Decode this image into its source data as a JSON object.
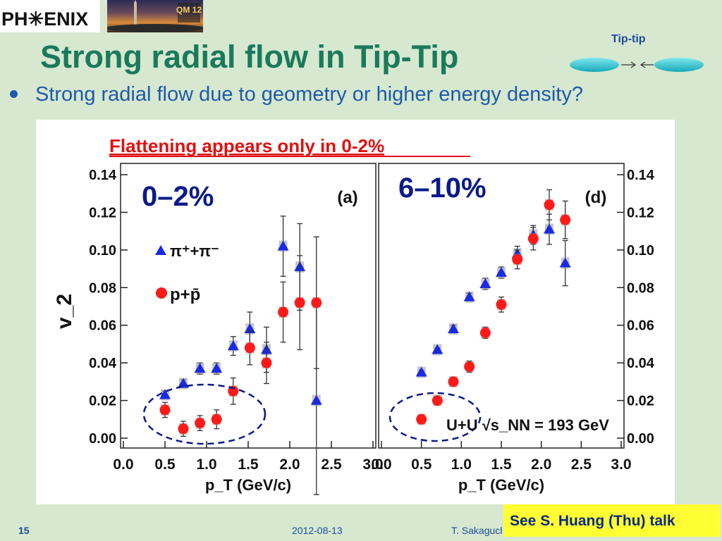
{
  "header": {
    "logo_text": "PH✳ENIX",
    "photo_badge": "QM 12",
    "title": "Strong radial flow in Tip-Tip",
    "bullet": "Strong radial flow due to geometry or higher energy density?",
    "tiptip_label": "Tip-tip"
  },
  "figure_notes": {
    "flattening": "Flattening appears only in 0-2%",
    "see_talk": "See S. Huang (Thu) talk"
  },
  "footer": {
    "page": "15",
    "date": "2012-08-13",
    "author": "T. Sakaguchi"
  },
  "colors": {
    "title": "#1a7a5a",
    "bullet": "#1e5aa8",
    "pion": "#1a2ae0",
    "proton": "#ff1a1a",
    "highlight": "#ffff33",
    "flattening": "#e01010"
  },
  "chart_data": [
    {
      "type": "scatter",
      "panel_label": "(a)",
      "centrality": "0–2%",
      "xlabel": "p_T (GeV/c)",
      "ylabel": "v_2",
      "xlim": [
        0.0,
        3.0
      ],
      "ylim": [
        0.0,
        0.14
      ],
      "xticks": [
        "0.0",
        "0.5",
        "1.0",
        "1.5",
        "2.0",
        "2.5",
        "3.0"
      ],
      "yticks": [
        "0.00",
        "0.02",
        "0.04",
        "0.06",
        "0.08",
        "0.10",
        "0.12",
        "0.14"
      ],
      "legend": [
        "π⁺+π⁻",
        "p+p̄"
      ],
      "series": [
        {
          "name": "π⁺+π⁻",
          "marker": "triangle",
          "points": [
            {
              "x": 0.5,
              "y": 0.023,
              "err": 0.002
            },
            {
              "x": 0.72,
              "y": 0.029,
              "err": 0.002
            },
            {
              "x": 0.92,
              "y": 0.037,
              "err": 0.003
            },
            {
              "x": 1.12,
              "y": 0.037,
              "err": 0.003
            },
            {
              "x": 1.32,
              "y": 0.049,
              "err": 0.005
            },
            {
              "x": 1.52,
              "y": 0.058,
              "err": 0.009
            },
            {
              "x": 1.72,
              "y": 0.047,
              "err": 0.012
            },
            {
              "x": 1.92,
              "y": 0.102,
              "err": 0.016
            },
            {
              "x": 2.12,
              "y": 0.091,
              "err": 0.023
            },
            {
              "x": 2.32,
              "y": 0.02,
              "err": 0.05
            }
          ]
        },
        {
          "name": "p+p̄",
          "marker": "circle",
          "points": [
            {
              "x": 0.5,
              "y": 0.015,
              "err": 0.004
            },
            {
              "x": 0.72,
              "y": 0.005,
              "err": 0.004
            },
            {
              "x": 0.92,
              "y": 0.008,
              "err": 0.004
            },
            {
              "x": 1.12,
              "y": 0.01,
              "err": 0.005
            },
            {
              "x": 1.32,
              "y": 0.025,
              "err": 0.007
            },
            {
              "x": 1.52,
              "y": 0.048,
              "err": 0.009
            },
            {
              "x": 1.72,
              "y": 0.04,
              "err": 0.011
            },
            {
              "x": 1.92,
              "y": 0.067,
              "err": 0.016
            },
            {
              "x": 2.12,
              "y": 0.072,
              "err": 0.025
            },
            {
              "x": 2.32,
              "y": 0.072,
              "err": 0.035
            }
          ]
        }
      ]
    },
    {
      "type": "scatter",
      "panel_label": "(d)",
      "centrality": "6–10%",
      "annotation": "U+U √s_NN = 193 GeV",
      "xlabel": "p_T (GeV/c)",
      "xlim": [
        0.0,
        3.0
      ],
      "ylim": [
        0.0,
        0.14
      ],
      "xticks": [
        "0.0",
        "0.5",
        "1.0",
        "1.5",
        "2.0",
        "2.5",
        "3.0"
      ],
      "yticks": [
        "0.00",
        "0.02",
        "0.04",
        "0.06",
        "0.08",
        "0.10",
        "0.12",
        "0.14"
      ],
      "series": [
        {
          "name": "π⁺+π⁻",
          "marker": "triangle",
          "points": [
            {
              "x": 0.5,
              "y": 0.035,
              "err": 0.001
            },
            {
              "x": 0.7,
              "y": 0.047,
              "err": 0.001
            },
            {
              "x": 0.9,
              "y": 0.058,
              "err": 0.002
            },
            {
              "x": 1.1,
              "y": 0.075,
              "err": 0.002
            },
            {
              "x": 1.3,
              "y": 0.082,
              "err": 0.003
            },
            {
              "x": 1.5,
              "y": 0.088,
              "err": 0.003
            },
            {
              "x": 1.7,
              "y": 0.098,
              "err": 0.004
            },
            {
              "x": 1.9,
              "y": 0.108,
              "err": 0.005
            },
            {
              "x": 2.1,
              "y": 0.111,
              "err": 0.008
            },
            {
              "x": 2.3,
              "y": 0.093,
              "err": 0.012
            }
          ]
        },
        {
          "name": "p+p̄",
          "marker": "circle",
          "points": [
            {
              "x": 0.5,
              "y": 0.01,
              "err": 0.002
            },
            {
              "x": 0.7,
              "y": 0.02,
              "err": 0.002
            },
            {
              "x": 0.9,
              "y": 0.03,
              "err": 0.002
            },
            {
              "x": 1.1,
              "y": 0.038,
              "err": 0.003
            },
            {
              "x": 1.3,
              "y": 0.056,
              "err": 0.003
            },
            {
              "x": 1.5,
              "y": 0.071,
              "err": 0.004
            },
            {
              "x": 1.7,
              "y": 0.095,
              "err": 0.005
            },
            {
              "x": 1.9,
              "y": 0.106,
              "err": 0.006
            },
            {
              "x": 2.1,
              "y": 0.124,
              "err": 0.008
            },
            {
              "x": 2.3,
              "y": 0.116,
              "err": 0.01
            }
          ]
        }
      ]
    }
  ]
}
